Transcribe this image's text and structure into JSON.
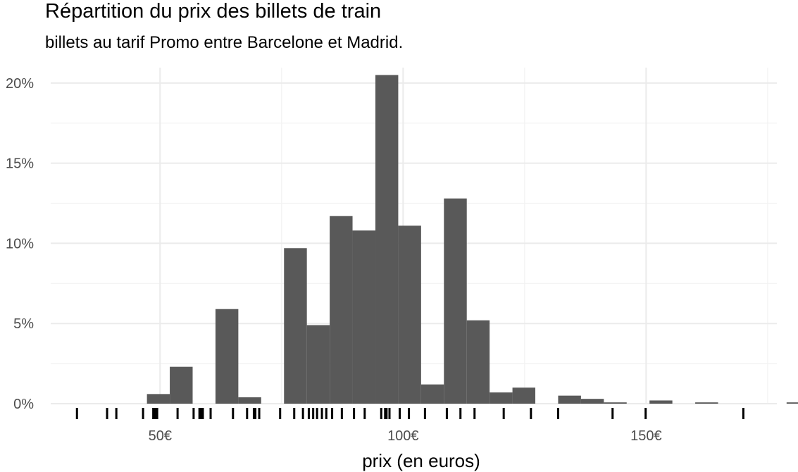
{
  "chart_data": {
    "type": "bar",
    "title": "Répartition du prix des billets de train",
    "subtitle": "billets au tarif Promo entre Barcelone et Madrid.",
    "xlabel": "prix (en euros)",
    "ylabel": "",
    "xlim": [
      27.5,
      176.9
    ],
    "ylim": [
      0,
      20.96
    ],
    "x_ticks": [
      {
        "value": 50,
        "label": "50€"
      },
      {
        "value": 100,
        "label": "100€"
      },
      {
        "value": 150,
        "label": "150€"
      }
    ],
    "y_ticks": [
      {
        "value": 0,
        "label": "0%"
      },
      {
        "value": 5,
        "label": "5%"
      },
      {
        "value": 10,
        "label": "10%"
      },
      {
        "value": 15,
        "label": "15%"
      },
      {
        "value": 20,
        "label": "20%"
      }
    ],
    "grid": true,
    "bin_width": 4.7,
    "bins_start": 33.2,
    "values": [
      0,
      0,
      0,
      0.6,
      2.3,
      0,
      5.9,
      0.4,
      0,
      9.7,
      4.9,
      11.7,
      10.8,
      20.5,
      11.1,
      1.2,
      12.8,
      5.2,
      0.7,
      1.0,
      0,
      0.5,
      0.3,
      0.08,
      0,
      0.2,
      0,
      0.08,
      0,
      0,
      0,
      0.08
    ],
    "rug": [
      32.9,
      39.1,
      41.0,
      46.5,
      48.6,
      49.0,
      49.4,
      53.6,
      56.9,
      58.1,
      58.4,
      58.8,
      60.4,
      65.0,
      67.9,
      69.3,
      69.6,
      70.4,
      74.7,
      77.6,
      79.4,
      80.6,
      81.5,
      82.3,
      83.3,
      84.2,
      85.4,
      87.4,
      89.9,
      92.1,
      95.5,
      96.3,
      96.6,
      97.2,
      99.3,
      101.2,
      104.5,
      109.0,
      111.8,
      114.7,
      120.7,
      126.3,
      131.9,
      143.1,
      149.9,
      170.0
    ]
  }
}
